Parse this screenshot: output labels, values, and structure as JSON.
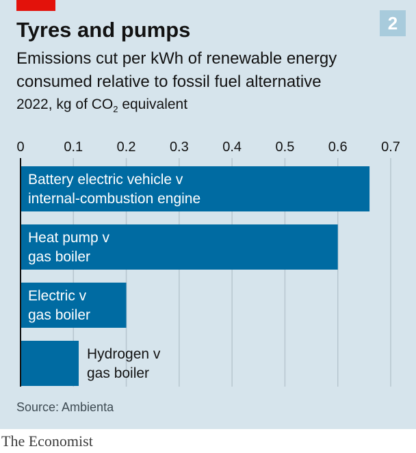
{
  "header": {
    "title": "Tyres and pumps",
    "chart_number": "2",
    "subtitle": "Emissions cut per kWh of renewable energy consumed relative to fossil fuel alternative",
    "units_prefix": "2022, kg of CO",
    "units_sub": "2",
    "units_suffix": " equivalent"
  },
  "footer": {
    "source": "Source: Ambienta",
    "brand": "The Economist"
  },
  "colors": {
    "background": "#d6e4ec",
    "bar": "#006ba2",
    "grid": "#b7c6cf",
    "accent": "#e3120b",
    "badge": "#a8cbdc"
  },
  "chart_data": {
    "type": "bar",
    "orientation": "horizontal",
    "title": "Tyres and pumps",
    "categories": [
      [
        "Battery electric vehicle v",
        "internal-combustion engine"
      ],
      [
        "Heat pump v",
        "gas boiler"
      ],
      [
        "Electric v",
        "gas boiler"
      ],
      [
        "Hydrogen v",
        "gas boiler"
      ]
    ],
    "values": [
      0.66,
      0.6,
      0.2,
      0.11
    ],
    "xlim": [
      0,
      0.7
    ],
    "xticks": [
      0,
      0.1,
      0.2,
      0.3,
      0.4,
      0.5,
      0.6,
      0.7
    ],
    "tick_labels": [
      "0",
      "0.1",
      "0.2",
      "0.3",
      "0.4",
      "0.5",
      "0.6",
      "0.7"
    ],
    "axis_position": "top",
    "grid": true
  }
}
